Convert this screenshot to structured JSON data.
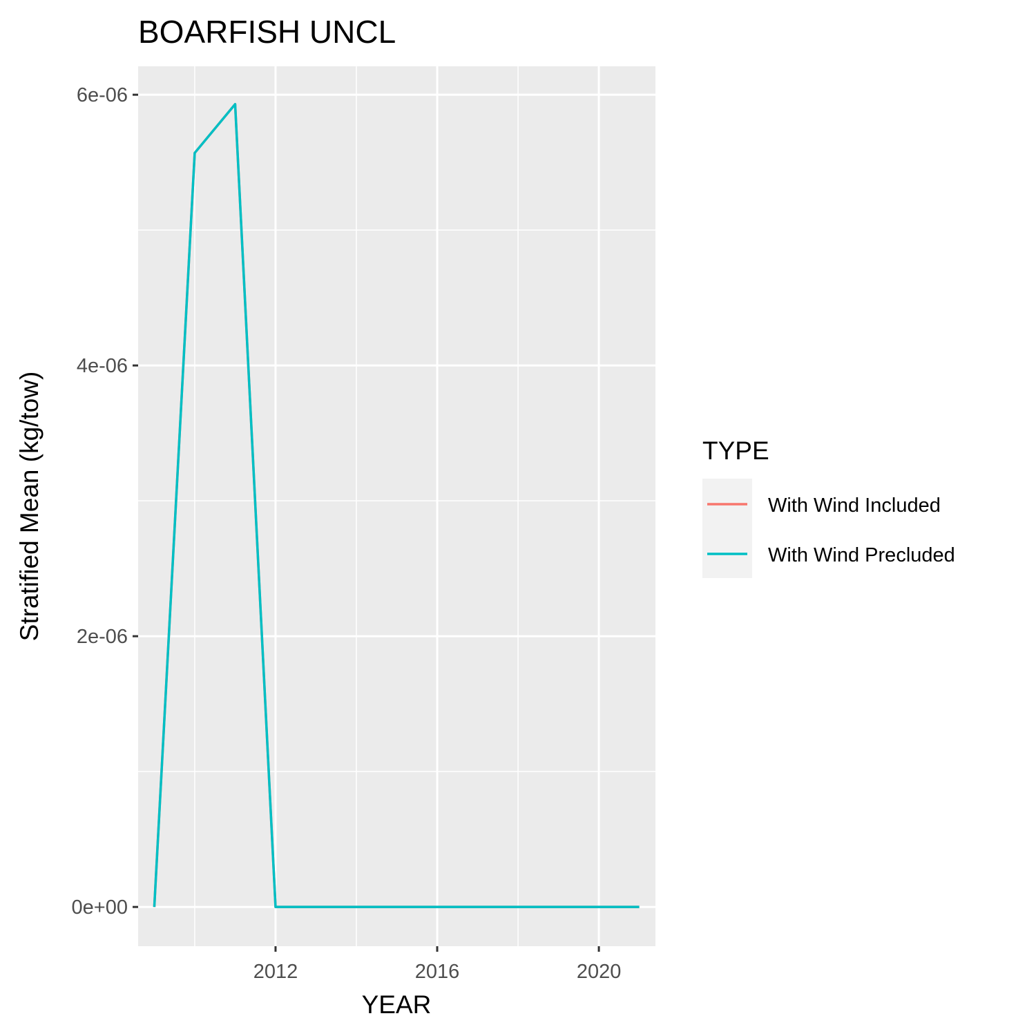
{
  "chart_data": {
    "type": "line",
    "title": "BOARFISH UNCL",
    "xlabel": "YEAR",
    "ylabel": "Stratified Mean (kg/tow)",
    "xlim": [
      2008.6,
      2021.4
    ],
    "ylim": [
      -2.9e-07,
      6.21e-06
    ],
    "x_ticks": [
      {
        "value": 2012,
        "label": "2012"
      },
      {
        "value": 2016,
        "label": "2016"
      },
      {
        "value": 2020,
        "label": "2020"
      }
    ],
    "x_minor": [
      2010,
      2014,
      2018
    ],
    "y_ticks": [
      {
        "value": 0,
        "label": "0e+00"
      },
      {
        "value": 2e-06,
        "label": "2e-06"
      },
      {
        "value": 4e-06,
        "label": "4e-06"
      },
      {
        "value": 6e-06,
        "label": "6e-06"
      }
    ],
    "y_minor": [
      1e-06,
      3e-06,
      5e-06
    ],
    "grid": true,
    "legend": {
      "title": "TYPE",
      "position": "right",
      "entries": [
        {
          "label": "With Wind Included",
          "color": "#F8766D"
        },
        {
          "label": "With Wind Precluded",
          "color": "#00BFC4"
        }
      ]
    },
    "series": [
      {
        "name": "With Wind Included",
        "color": "#F8766D",
        "x": [
          2009,
          2010,
          2011,
          2012,
          2013,
          2014,
          2015,
          2016,
          2017,
          2018,
          2019,
          2020,
          2021
        ],
        "y": [
          0,
          5.57e-06,
          5.93e-06,
          0,
          0,
          0,
          0,
          0,
          0,
          0,
          0,
          0,
          0
        ]
      },
      {
        "name": "With Wind Precluded",
        "color": "#00BFC4",
        "x": [
          2009,
          2010,
          2011,
          2012,
          2013,
          2014,
          2015,
          2016,
          2017,
          2018,
          2019,
          2020,
          2021
        ],
        "y": [
          0,
          5.57e-06,
          5.93e-06,
          0,
          0,
          0,
          0,
          0,
          0,
          0,
          0,
          0,
          0
        ]
      }
    ]
  }
}
